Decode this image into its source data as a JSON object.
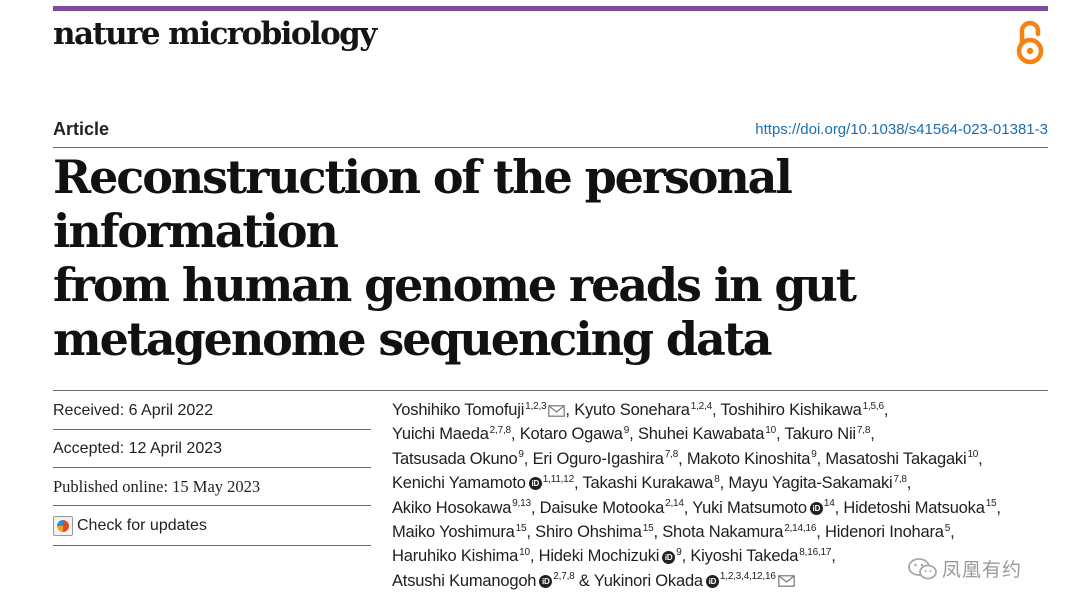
{
  "header": {
    "journal_name": "nature microbiology",
    "accent_color": "#7c4b9c",
    "oa_icon": "open-access-icon",
    "oa_color": "#f68212"
  },
  "meta": {
    "article_type": "Article",
    "doi": "https://doi.org/10.1038/s41564-023-01381-3"
  },
  "title_lines": [
    "Reconstruction of the personal information",
    "from human genome reads in gut",
    "metagenome sequencing data"
  ],
  "dates": {
    "received": "Received: 6 April 2022",
    "accepted": "Accepted: 12 April 2023",
    "published": "Published online: 15 May 2023",
    "check_updates": "Check for updates"
  },
  "authors": [
    {
      "name": "Yoshihiko Tomofuji",
      "sup": "1,2,3",
      "mail": true,
      "orcid": false
    },
    {
      "name": "Kyuto Sonehara",
      "sup": "1,2,4",
      "mail": false,
      "orcid": false
    },
    {
      "name": "Toshihiro Kishikawa",
      "sup": "1,5,6",
      "mail": false,
      "orcid": false
    },
    {
      "name": "Yuichi Maeda",
      "sup": "2,7,8",
      "mail": false,
      "orcid": false
    },
    {
      "name": "Kotaro Ogawa",
      "sup": "9",
      "mail": false,
      "orcid": false
    },
    {
      "name": "Shuhei Kawabata",
      "sup": "10",
      "mail": false,
      "orcid": false
    },
    {
      "name": "Takuro Nii",
      "sup": "7,8",
      "mail": false,
      "orcid": false
    },
    {
      "name": "Tatsusada Okuno",
      "sup": "9",
      "mail": false,
      "orcid": false
    },
    {
      "name": "Eri Oguro-Igashira",
      "sup": "7,8",
      "mail": false,
      "orcid": false
    },
    {
      "name": "Makoto Kinoshita",
      "sup": "9",
      "mail": false,
      "orcid": false
    },
    {
      "name": "Masatoshi Takagaki",
      "sup": "10",
      "mail": false,
      "orcid": false
    },
    {
      "name": "Kenichi Yamamoto",
      "sup": "1,11,12",
      "mail": false,
      "orcid": true
    },
    {
      "name": "Takashi Kurakawa",
      "sup": "8",
      "mail": false,
      "orcid": false
    },
    {
      "name": "Mayu Yagita-Sakamaki",
      "sup": "7,8",
      "mail": false,
      "orcid": false
    },
    {
      "name": "Akiko Hosokawa",
      "sup": "9,13",
      "mail": false,
      "orcid": false
    },
    {
      "name": "Daisuke Motooka",
      "sup": "2,14",
      "mail": false,
      "orcid": false
    },
    {
      "name": "Yuki Matsumoto",
      "sup": "14",
      "mail": false,
      "orcid": true
    },
    {
      "name": "Hidetoshi Matsuoka",
      "sup": "15",
      "mail": false,
      "orcid": false
    },
    {
      "name": "Maiko Yoshimura",
      "sup": "15",
      "mail": false,
      "orcid": false
    },
    {
      "name": "Shiro Ohshima",
      "sup": "15",
      "mail": false,
      "orcid": false
    },
    {
      "name": "Shota Nakamura",
      "sup": "2,14,16",
      "mail": false,
      "orcid": false
    },
    {
      "name": "Hidenori Inohara",
      "sup": "5",
      "mail": false,
      "orcid": false
    },
    {
      "name": "Haruhiko Kishima",
      "sup": "10",
      "mail": false,
      "orcid": false
    },
    {
      "name": "Hideki Mochizuki",
      "sup": "9",
      "mail": false,
      "orcid": true
    },
    {
      "name": "Kiyoshi Takeda",
      "sup": "8,16,17",
      "mail": false,
      "orcid": false
    },
    {
      "name": "Atsushi Kumanogoh",
      "sup": "2,7,8",
      "mail": false,
      "orcid": true
    },
    {
      "name": "Yukinori Okada",
      "sup": "1,2,3,4,12,16",
      "mail": true,
      "orcid": true
    }
  ],
  "watermark": {
    "text": "凤凰有约",
    "icon": "wechat-icon"
  }
}
